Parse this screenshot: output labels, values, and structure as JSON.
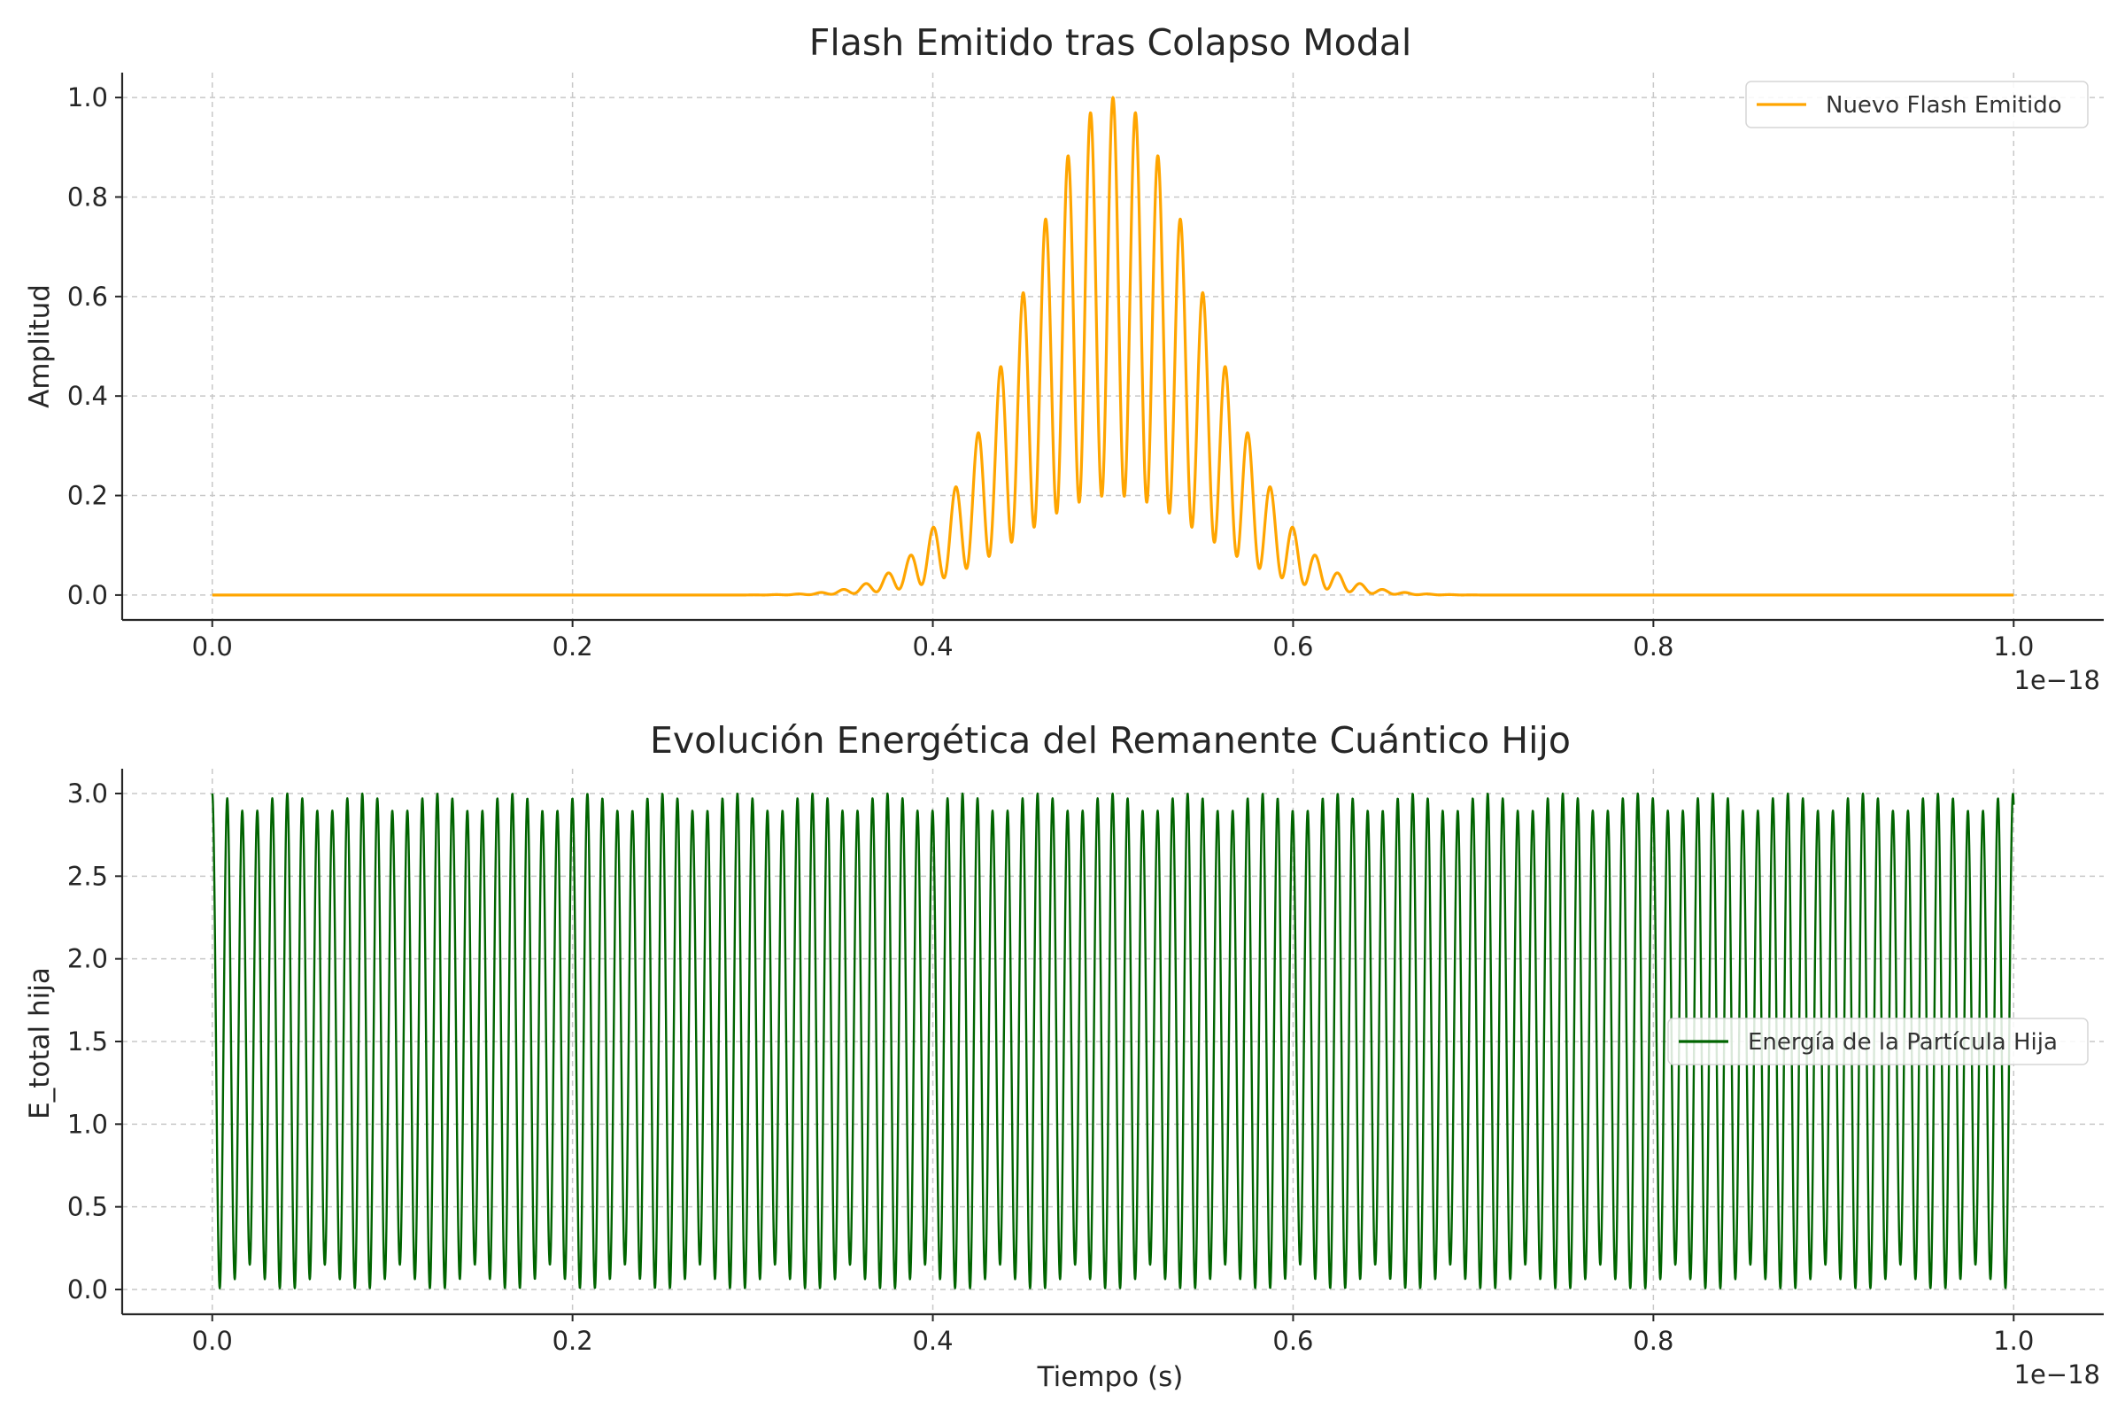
{
  "chart_data": [
    {
      "type": "line",
      "title": "Flash Emitido tras Colapso Modal",
      "xlabel": "",
      "ylabel": "Amplitud",
      "x_offset_label": "1e−18",
      "xlim": [
        -0.05,
        1.05
      ],
      "ylim": [
        -0.05,
        1.05
      ],
      "x_ticks": [
        0.0,
        0.2,
        0.4,
        0.6,
        0.8,
        1.0
      ],
      "x_tick_labels": [
        "0.0",
        "0.2",
        "0.4",
        "0.6",
        "0.8",
        "1.0"
      ],
      "y_ticks": [
        0.0,
        0.2,
        0.4,
        0.6,
        0.8,
        1.0
      ],
      "y_tick_labels": [
        "0.0",
        "0.2",
        "0.4",
        "0.6",
        "0.8",
        "1.0"
      ],
      "grid": true,
      "legend_position": "top-right",
      "series": [
        {
          "name": "Nuevo Flash Emitido",
          "color": "#ffa500",
          "description_values": {
            "form": "Gaussian envelope × oscillation",
            "x_range": [
              0.0,
              1.0
            ],
            "envelope_center": 0.5,
            "envelope_sigma": 0.05,
            "peak": 1.0,
            "oscillation_period": 0.0125,
            "oscillation_min_fraction": 0.2
          }
        }
      ]
    },
    {
      "type": "line",
      "title": "Evolución Energética del Remanente Cuántico Hijo",
      "xlabel": "Tiempo (s)",
      "ylabel": "E_total hija",
      "x_offset_label": "1e−18",
      "xlim": [
        -0.05,
        1.05
      ],
      "ylim": [
        -0.15,
        3.15
      ],
      "x_ticks": [
        0.0,
        0.2,
        0.4,
        0.6,
        0.8,
        1.0
      ],
      "x_tick_labels": [
        "0.0",
        "0.2",
        "0.4",
        "0.6",
        "0.8",
        "1.0"
      ],
      "y_ticks": [
        0.0,
        0.5,
        1.0,
        1.5,
        2.0,
        2.5,
        3.0
      ],
      "y_tick_labels": [
        "0.0",
        "0.5",
        "1.0",
        "1.5",
        "2.0",
        "2.5",
        "3.0"
      ],
      "grid": true,
      "legend_position": "center-right",
      "series": [
        {
          "name": "Energía de la Partícula Hija",
          "color": "#006400",
          "description_values": {
            "form": "fast oscillation between ~0 and 3.0 with slow beat",
            "x_range": [
              0.0,
              1.0
            ],
            "fast_period": 0.00833,
            "beat_period": 0.0833,
            "max": 3.0,
            "min": 0.0
          }
        }
      ]
    }
  ]
}
